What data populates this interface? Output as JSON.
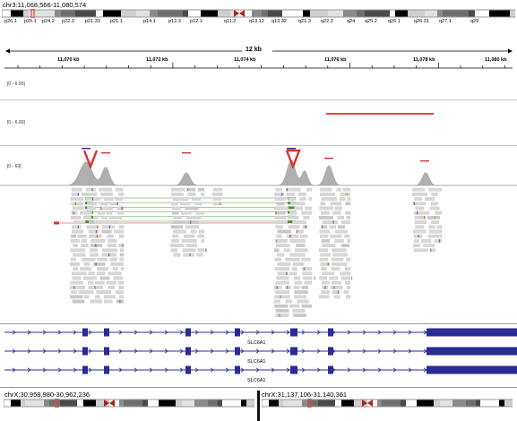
{
  "top_locus": {
    "label": "chr3:11,068,566-11,080,574"
  },
  "ideogram_bands": [
    "p26.1",
    "p25.1",
    "p24.2",
    "p22.3",
    "p21.33",
    "p21.1",
    "p14.1",
    "p12.3",
    "p12.1",
    "q11.2",
    "q13.12",
    "q13.32",
    "q21.3",
    "q22.3",
    "q24",
    "q25.2",
    "q26.1",
    "q26.31",
    "q27.1",
    "q29"
  ],
  "ruler": {
    "span_label": "12 kb",
    "ticks": [
      "11,070 kb",
      "11,072 kb",
      "11,074 kb",
      "11,076 kb",
      "11,078 kb",
      "11,080 kb"
    ]
  },
  "tracks": {
    "track1_range": "[0 - 6.00]",
    "track2_range": "[0 - 6.00]",
    "coverage_range": "[0 - 63]"
  },
  "genes": [
    {
      "label": "SLC6A1"
    },
    {
      "label": "SLC6A1"
    },
    {
      "label": "SLC6A1"
    }
  ],
  "split_view": {
    "left_locus": "chrX:30,958,980-30,962,236",
    "right_locus": "chrX:31,137,106-31,140,361"
  },
  "colors": {
    "centromere": "#b22222",
    "highlight": "#e8453c",
    "gene": "#2b2b94",
    "coverage": "#b0b0b0",
    "insertion_marker": "#d93030",
    "split_read": "#4a9a30"
  }
}
